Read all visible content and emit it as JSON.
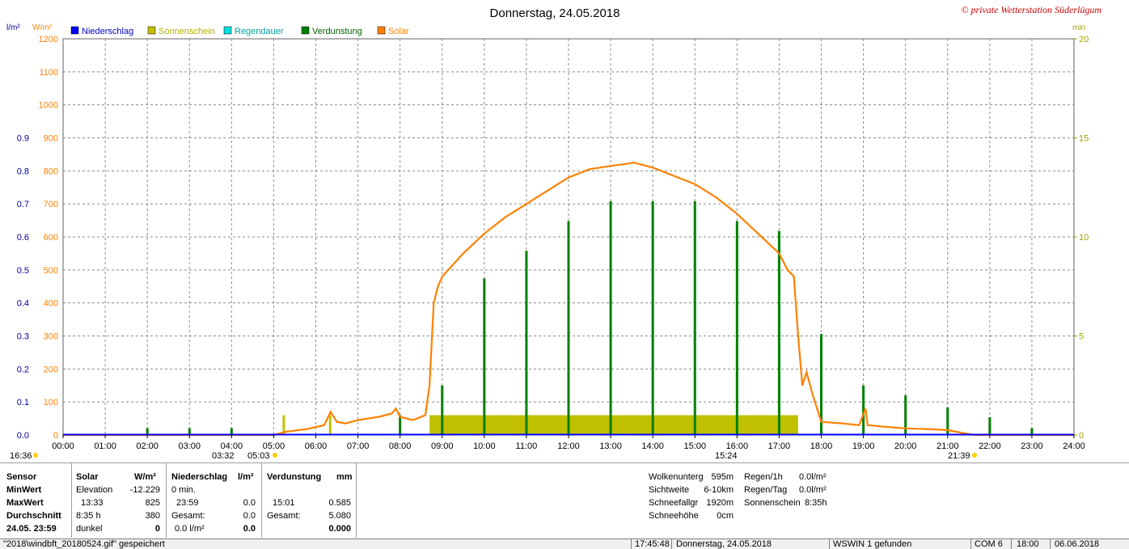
{
  "chart_data": {
    "type": "bar",
    "title": "Donnerstag, 24.05.2018",
    "copyright": "© private Wetterstation Süderlügum",
    "left_axis_unit": "l/m²",
    "solar_axis_unit": "W/m²",
    "right_axis_unit": "min",
    "left_ticks": [
      "0.0",
      "0.1",
      "0.2",
      "0.3",
      "0.4",
      "0.5",
      "0.6",
      "0.7",
      "0.8",
      "0.9"
    ],
    "solar_ticks": [
      "0",
      "100",
      "200",
      "300",
      "400",
      "500",
      "600",
      "700",
      "800",
      "900",
      "1000",
      "1100",
      "1200"
    ],
    "right_ticks": [
      "0",
      "5",
      "10",
      "15",
      "20"
    ],
    "x_ticks": [
      "00:00",
      "01:00",
      "02:00",
      "03:00",
      "04:00",
      "05:00",
      "06:00",
      "07:00",
      "08:00",
      "09:00",
      "10:00",
      "11:00",
      "12:00",
      "13:00",
      "14:00",
      "15:00",
      "16:00",
      "17:00",
      "18:00",
      "19:00",
      "20:00",
      "21:00",
      "22:00",
      "23:00",
      "24:00"
    ],
    "legend": [
      {
        "name": "Niederschlag",
        "color": "#0000ff",
        "text_color": "#0000c0"
      },
      {
        "name": "Sonnenschein",
        "color": "#c0c000",
        "text_color": "#b0b000"
      },
      {
        "name": "Regendauer",
        "color": "#00e0e0",
        "text_color": "#00a0a0"
      },
      {
        "name": "Verdunstung",
        "color": "#008000",
        "text_color": "#006000"
      },
      {
        "name": "Solar",
        "color": "#ff8000",
        "text_color": "#ff8000"
      }
    ],
    "x_range_hours": [
      0,
      24
    ],
    "solar_range": [
      0,
      1200
    ],
    "minutes_range": [
      0,
      20
    ],
    "solar_series": [
      [
        0,
        0
      ],
      [
        5.0,
        0
      ],
      [
        5.3,
        10
      ],
      [
        5.8,
        18
      ],
      [
        6.2,
        30
      ],
      [
        6.35,
        70
      ],
      [
        6.5,
        40
      ],
      [
        6.7,
        35
      ],
      [
        7.0,
        45
      ],
      [
        7.5,
        55
      ],
      [
        7.8,
        65
      ],
      [
        7.9,
        80
      ],
      [
        8.0,
        55
      ],
      [
        8.3,
        45
      ],
      [
        8.6,
        60
      ],
      [
        8.7,
        150
      ],
      [
        8.8,
        400
      ],
      [
        8.9,
        450
      ],
      [
        9.0,
        480
      ],
      [
        9.5,
        550
      ],
      [
        10.0,
        610
      ],
      [
        10.5,
        660
      ],
      [
        11.0,
        700
      ],
      [
        11.5,
        740
      ],
      [
        12.0,
        780
      ],
      [
        12.5,
        805
      ],
      [
        13.0,
        815
      ],
      [
        13.3,
        820
      ],
      [
        13.55,
        825
      ],
      [
        14.0,
        810
      ],
      [
        14.5,
        785
      ],
      [
        15.0,
        760
      ],
      [
        15.5,
        720
      ],
      [
        16.0,
        670
      ],
      [
        16.5,
        610
      ],
      [
        17.0,
        550
      ],
      [
        17.2,
        500
      ],
      [
        17.35,
        480
      ],
      [
        17.45,
        300
      ],
      [
        17.55,
        150
      ],
      [
        17.65,
        190
      ],
      [
        17.8,
        120
      ],
      [
        18.0,
        40
      ],
      [
        18.5,
        35
      ],
      [
        18.9,
        30
      ],
      [
        19.05,
        80
      ],
      [
        19.1,
        30
      ],
      [
        19.5,
        25
      ],
      [
        20.0,
        20
      ],
      [
        20.5,
        18
      ],
      [
        21.0,
        15
      ],
      [
        21.4,
        5
      ],
      [
        21.65,
        0
      ],
      [
        24,
        0
      ]
    ],
    "sunshine_minutes": [
      {
        "h": 5.25,
        "m": 1
      },
      {
        "h": 6.35,
        "m": 1
      },
      {
        "h": 9,
        "m": 1
      },
      {
        "h": 10,
        "m": 1
      },
      {
        "h": 11,
        "m": 1
      },
      {
        "h": 12,
        "m": 1
      },
      {
        "h": 13,
        "m": 1
      },
      {
        "h": 14,
        "m": 1
      },
      {
        "h": 15,
        "m": 1
      },
      {
        "h": 16,
        "m": 1
      },
      {
        "h": 17,
        "m": 1
      }
    ],
    "sunshine_block": {
      "from": 8.7,
      "to": 17.45,
      "minutes": 1
    },
    "evaporation_bars_minutes": [
      {
        "h": 2.0,
        "m": 0.35
      },
      {
        "h": 3.0,
        "m": 0.35
      },
      {
        "h": 4.0,
        "m": 0.35
      },
      {
        "h": 8.0,
        "m": 1.0
      },
      {
        "h": 9.0,
        "m": 2.5
      },
      {
        "h": 10.0,
        "m": 7.9
      },
      {
        "h": 11.0,
        "m": 9.3
      },
      {
        "h": 12.0,
        "m": 10.8
      },
      {
        "h": 13.0,
        "m": 11.8
      },
      {
        "h": 14.0,
        "m": 11.8
      },
      {
        "h": 15.0,
        "m": 11.8
      },
      {
        "h": 16.0,
        "m": 10.8
      },
      {
        "h": 17.0,
        "m": 10.3
      },
      {
        "h": 18.0,
        "m": 5.1
      },
      {
        "h": 19.0,
        "m": 2.5
      },
      {
        "h": 20.0,
        "m": 2.0
      },
      {
        "h": 21.0,
        "m": 1.4
      },
      {
        "h": 22.0,
        "m": 0.9
      },
      {
        "h": 23.0,
        "m": 0.35
      }
    ],
    "markers": {
      "left_time": "16:36",
      "sunrise_label": "03:32",
      "solar_start": "05:03",
      "min_solar_label": "15:24",
      "sunset": "21:39"
    }
  },
  "stats": {
    "col_sensor": {
      "header": "Sensor",
      "rows": [
        "MinWert",
        "MaxWert",
        "Durchschnitt",
        "24.05. 23:59"
      ]
    },
    "col_solar": {
      "header": "Solar",
      "unit": "W/m²",
      "rows": [
        [
          "Elevation",
          "-12.229"
        ],
        [
          "13:33",
          "825"
        ],
        [
          "8:35 h",
          "380"
        ],
        [
          "dunkel",
          "0"
        ]
      ]
    },
    "col_rain": {
      "header": "Niederschlag",
      "unit": "l/m²",
      "rows": [
        [
          "0 min.",
          ""
        ],
        [
          "23:59",
          "0.0"
        ],
        [
          "Gesamt:",
          "0.0"
        ],
        [
          "0.0 l/m²",
          "0.0"
        ]
      ]
    },
    "col_evap": {
      "header": "Verdunstung",
      "unit": "mm",
      "rows": [
        [
          "",
          ""
        ],
        [
          "15:01",
          "0.585"
        ],
        [
          "Gesamt:",
          "5.080"
        ],
        [
          "",
          "0.000"
        ]
      ]
    },
    "weather_left": [
      [
        "Wolkenunterg",
        "595m"
      ],
      [
        "Sichtweite",
        "6-10km"
      ],
      [
        "Schneefallgr",
        "1920m"
      ],
      [
        "Schneehöhe",
        "0cm"
      ]
    ],
    "weather_right": [
      [
        "Regen/1h",
        "0.0l/m²"
      ],
      [
        "Regen/Tag",
        "0.0l/m²"
      ],
      [
        "Sonnenschein",
        "8:35h"
      ]
    ]
  },
  "statusbar": {
    "file": "\"2018\\windbft_20180524.gif\" gespeichert",
    "time": "17:45:48",
    "date": "Donnerstag, 24.05.2018",
    "found": "WSWIN 1 gefunden",
    "port": "COM 6",
    "interval": "18:00",
    "today": "06.06.2018"
  },
  "colors": {
    "grid": "#808080",
    "solar": "#ff8000",
    "sun": "#c0c000",
    "evap": "#008000",
    "left_axis": "#0000a0",
    "right_axis": "#a0a000"
  }
}
